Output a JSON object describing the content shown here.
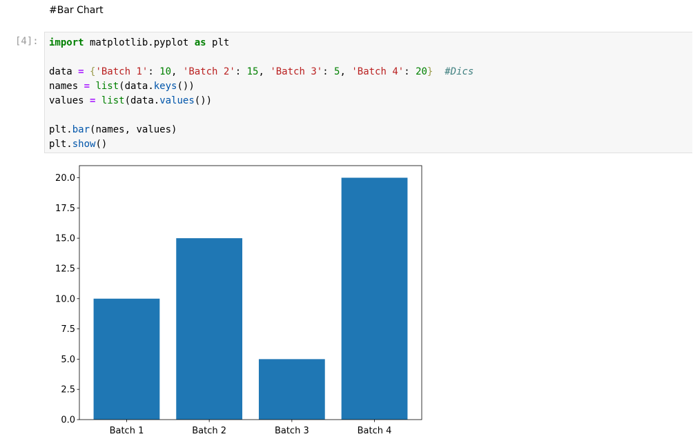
{
  "markdown": "#Bar Chart",
  "prompt": "[4]:",
  "code": {
    "lines": [
      [
        "import",
        " matplotlib.pyplot ",
        "as",
        " plt"
      ],
      [
        "data ",
        "=",
        " {",
        "'Batch 1'",
        ": ",
        "10",
        ", ",
        "'Batch 2'",
        ": ",
        "15",
        ", ",
        "'Batch 3'",
        ": ",
        "5",
        ", ",
        "'Batch 4'",
        ": ",
        "20",
        "}",
        "  #Dics"
      ],
      [
        "names ",
        "=",
        " list",
        "(data.",
        "keys",
        "())"
      ],
      [
        "values ",
        "=",
        " list",
        "(data.",
        "values",
        "())"
      ],
      [
        "plt.",
        "bar",
        "(names, values)"
      ],
      [
        "plt.",
        "show",
        "()"
      ]
    ]
  },
  "chart_data": {
    "type": "bar",
    "categories": [
      "Batch 1",
      "Batch 2",
      "Batch 3",
      "Batch 4"
    ],
    "values": [
      10,
      15,
      5,
      20
    ],
    "color": "#1f77b4",
    "ylim": [
      0,
      21
    ],
    "yticks": [
      {
        "value": 0,
        "label": "0.0"
      },
      {
        "value": 2.5,
        "label": "2.5"
      },
      {
        "value": 5,
        "label": "5.0"
      },
      {
        "value": 7.5,
        "label": "7.5"
      },
      {
        "value": 10,
        "label": "10.0"
      },
      {
        "value": 12.5,
        "label": "12.5"
      },
      {
        "value": 15,
        "label": "15.0"
      },
      {
        "value": 17.5,
        "label": "17.5"
      },
      {
        "value": 20,
        "label": "20.0"
      }
    ]
  }
}
